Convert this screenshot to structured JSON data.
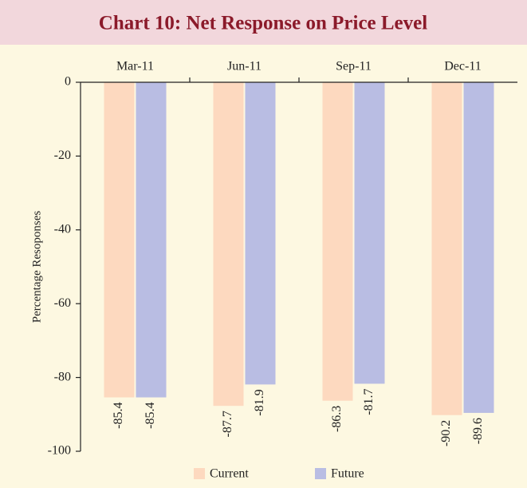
{
  "chart_data": {
    "type": "bar",
    "title": "Chart 10: Net Response on Price Level",
    "y_label": "Percentage Resoponses",
    "categories": [
      "Mar-11",
      "Jun-11",
      "Sep-11",
      "Dec-11"
    ],
    "series": [
      {
        "name": "Current",
        "color": "#fdd9bf",
        "values": [
          -85.4,
          -87.7,
          -86.3,
          -90.2
        ]
      },
      {
        "name": "Future",
        "color": "#b9bde3",
        "values": [
          -85.4,
          -81.9,
          -81.7,
          -89.6
        ]
      }
    ],
    "ylim": [
      -100,
      0
    ],
    "yticks": [
      0,
      -20,
      -40,
      -60,
      -80,
      -100
    ]
  }
}
